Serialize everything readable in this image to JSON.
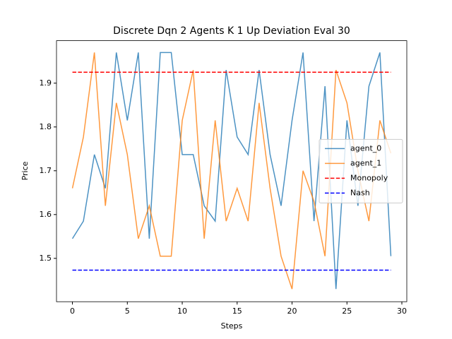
{
  "chart_data": {
    "type": "line",
    "title": "Discrete Dqn 2 Agents K 1 Up Deviation Eval 30",
    "xlabel": "Steps",
    "ylabel": "Price",
    "x": [
      0,
      1,
      2,
      3,
      4,
      5,
      6,
      7,
      8,
      9,
      10,
      11,
      12,
      13,
      14,
      15,
      16,
      17,
      18,
      19,
      20,
      21,
      22,
      23,
      24,
      25,
      26,
      27,
      28,
      29
    ],
    "series": [
      {
        "name": "agent_0",
        "color": "#1f77b4",
        "dash": false,
        "values": [
          1.545,
          1.585,
          1.737,
          1.66,
          1.97,
          1.815,
          1.97,
          1.545,
          1.97,
          1.97,
          1.737,
          1.737,
          1.62,
          1.585,
          1.93,
          1.777,
          1.737,
          1.93,
          1.737,
          1.62,
          1.815,
          1.97,
          1.585,
          1.893,
          1.43,
          1.815,
          1.62,
          1.893,
          1.97,
          1.505
        ]
      },
      {
        "name": "agent_1",
        "color": "#ff7f0e",
        "dash": false,
        "values": [
          1.66,
          1.777,
          1.97,
          1.62,
          1.855,
          1.737,
          1.545,
          1.62,
          1.505,
          1.505,
          1.815,
          1.93,
          1.545,
          1.815,
          1.585,
          1.66,
          1.585,
          1.855,
          1.66,
          1.505,
          1.43,
          1.7,
          1.63,
          1.505,
          1.93,
          1.855,
          1.7,
          1.585,
          1.815,
          1.74
        ]
      },
      {
        "name": "Monopoly",
        "color": "#ff0000",
        "dash": true,
        "values": [
          1.925,
          1.925,
          1.925,
          1.925,
          1.925,
          1.925,
          1.925,
          1.925,
          1.925,
          1.925,
          1.925,
          1.925,
          1.925,
          1.925,
          1.925,
          1.925,
          1.925,
          1.925,
          1.925,
          1.925,
          1.925,
          1.925,
          1.925,
          1.925,
          1.925,
          1.925,
          1.925,
          1.925,
          1.925,
          1.925
        ]
      },
      {
        "name": "Nash",
        "color": "#0000ff",
        "dash": true,
        "values": [
          1.473,
          1.473,
          1.473,
          1.473,
          1.473,
          1.473,
          1.473,
          1.473,
          1.473,
          1.473,
          1.473,
          1.473,
          1.473,
          1.473,
          1.473,
          1.473,
          1.473,
          1.473,
          1.473,
          1.473,
          1.473,
          1.473,
          1.473,
          1.473,
          1.473,
          1.473,
          1.473,
          1.473,
          1.473,
          1.473
        ]
      }
    ],
    "xlim": [
      -1.45,
      30.45
    ],
    "xticks": [
      0,
      5,
      10,
      15,
      20,
      25,
      30
    ],
    "ylim": [
      1.401,
      1.997
    ],
    "yticks": [
      1.5,
      1.6,
      1.7,
      1.8,
      1.9
    ],
    "legend": "center right"
  }
}
